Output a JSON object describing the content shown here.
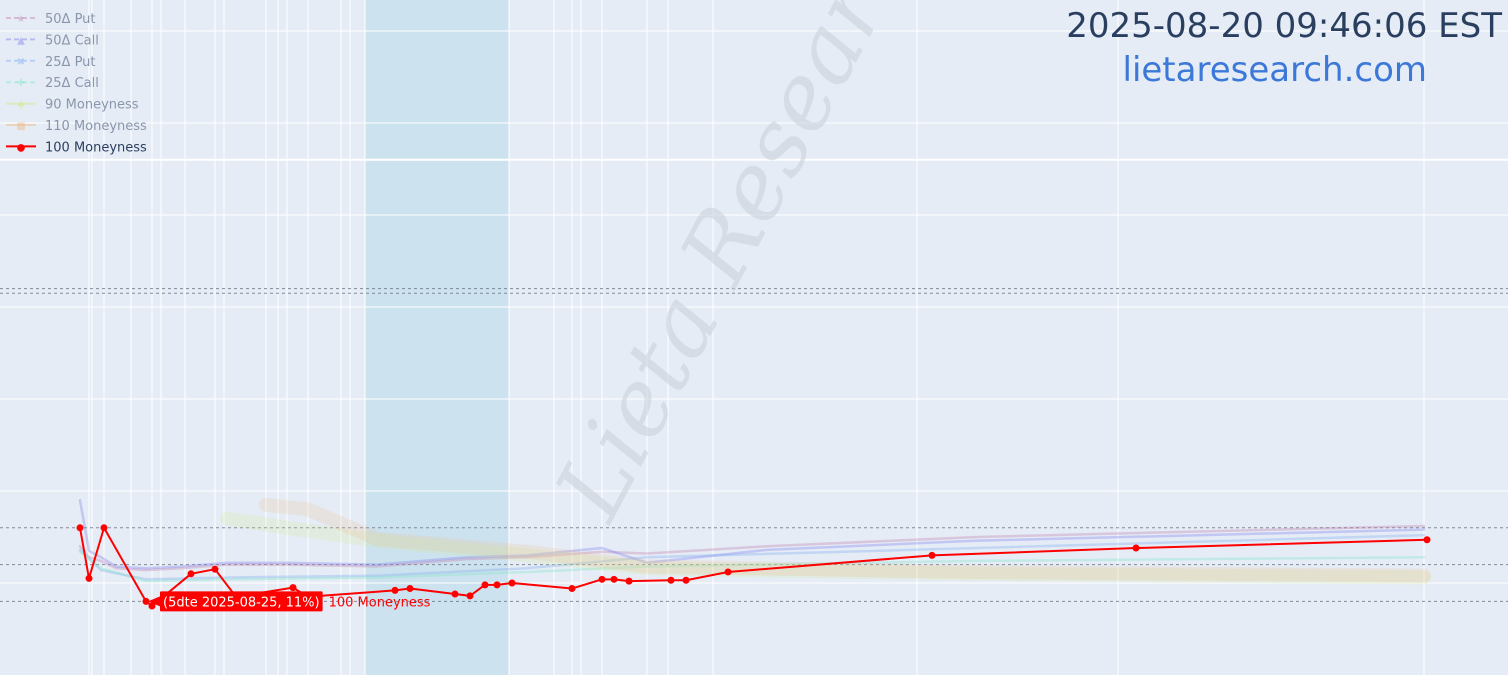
{
  "header": {
    "timestamp": "2025-08-20 09:46:06 EST",
    "site": "lietaresearch.com",
    "watermark": "Lieta Research"
  },
  "colors": {
    "background": "#e5ecf6",
    "grid": "#ffffff",
    "highlight_band": "#add8e6",
    "active_series": "#ff0000",
    "text": "#2a3f5f",
    "site": "#3b78d8"
  },
  "chart_data": {
    "type": "line",
    "x_unit": "days to expiration",
    "x_range": [
      -1,
      450
    ],
    "y_range": [
      0,
      70
    ],
    "grid": true,
    "legend_position": "top-left",
    "highlight_band_dte": [
      96,
      144
    ],
    "vertical_gridlines_dte": [
      4,
      5,
      9,
      18,
      25,
      28,
      36,
      46,
      49,
      63,
      67,
      70,
      77,
      88,
      91,
      96,
      144,
      159,
      165,
      168,
      175,
      190,
      197,
      212,
      280,
      347,
      449
    ],
    "reference_lines_y": [
      8,
      12,
      16,
      41.5,
      42
    ],
    "series": [
      {
        "name": "50Δ Put",
        "color": "#c080b0",
        "marker": "★",
        "dash": true,
        "visible": false,
        "x": [
          1,
          4,
          8,
          13,
          23,
          35,
          50,
          70,
          100,
          130,
          150,
          175,
          190,
          230,
          300,
          449
        ],
        "y": [
          14.0,
          12.8,
          12.4,
          11.6,
          11.4,
          11.6,
          12.0,
          12.0,
          11.8,
          12.6,
          12.8,
          13.4,
          13.2,
          14.0,
          15.0,
          16.2
        ]
      },
      {
        "name": "50Δ Call",
        "color": "#8080ee",
        "marker": "▲",
        "dash": true,
        "visible": false,
        "x": [
          1,
          4,
          8,
          13,
          23,
          35,
          50,
          70,
          100,
          130,
          150,
          175,
          190,
          230,
          300,
          449
        ],
        "y": [
          19.0,
          13.5,
          12.8,
          11.8,
          11.6,
          11.8,
          12.2,
          12.2,
          12.0,
          12.8,
          13.0,
          13.8,
          12.2,
          13.6,
          14.6,
          15.8
        ]
      },
      {
        "name": "25Δ Put",
        "color": "#80b0ee",
        "marker": "✖",
        "dash": true,
        "visible": false,
        "x": [
          1,
          8,
          23,
          50,
          100,
          150,
          190,
          300,
          449
        ],
        "y": [
          13.6,
          11.4,
          10.4,
          10.6,
          10.8,
          11.6,
          12.8,
          13.8,
          15.2
        ]
      },
      {
        "name": "25Δ Call",
        "color": "#80e6c8",
        "marker": "✚",
        "dash": true,
        "visible": false,
        "x": [
          1,
          8,
          23,
          50,
          100,
          150,
          190,
          300,
          449
        ],
        "y": [
          13.4,
          11.6,
          10.2,
          10.4,
          10.6,
          11.2,
          11.8,
          12.4,
          12.8
        ]
      },
      {
        "name": "90 Moneyness",
        "color": "#d0e880",
        "marker": "◆",
        "dash": false,
        "visible": false,
        "x": [
          50,
          70,
          100,
          150,
          190,
          300,
          449
        ],
        "y": [
          17.0,
          16.0,
          14.6,
          13.0,
          11.6,
          11.0,
          10.6
        ]
      },
      {
        "name": "110 Moneyness",
        "color": "#f0b880",
        "marker": "■",
        "dash": false,
        "visible": false,
        "x": [
          63,
          77,
          100,
          150,
          190,
          300,
          449
        ],
        "y": [
          18.5,
          18.0,
          14.8,
          13.4,
          11.8,
          11.2,
          10.8
        ]
      },
      {
        "name": "100 Moneyness",
        "color": "#ff0000",
        "marker": "●",
        "dash": false,
        "visible": true,
        "x": [
          1,
          4,
          9,
          23,
          25,
          38,
          46,
          53,
          72,
          77,
          106,
          111,
          126,
          131,
          136,
          140,
          145,
          165,
          175,
          179,
          184,
          198,
          203,
          217,
          285,
          353,
          450
        ],
        "y": [
          16.0,
          10.5,
          16.0,
          8.0,
          7.5,
          11.0,
          11.5,
          8.5,
          9.5,
          8.5,
          9.2,
          9.4,
          8.8,
          8.6,
          9.8,
          9.8,
          10.0,
          9.4,
          10.4,
          10.4,
          10.2,
          10.3,
          10.3,
          11.2,
          13.0,
          13.8,
          14.7
        ]
      }
    ],
    "hover_label": {
      "text": "(5dte 2025-08-25, 11%)",
      "series_name": "100 Moneyness",
      "x": 23,
      "y": 8.0
    }
  }
}
